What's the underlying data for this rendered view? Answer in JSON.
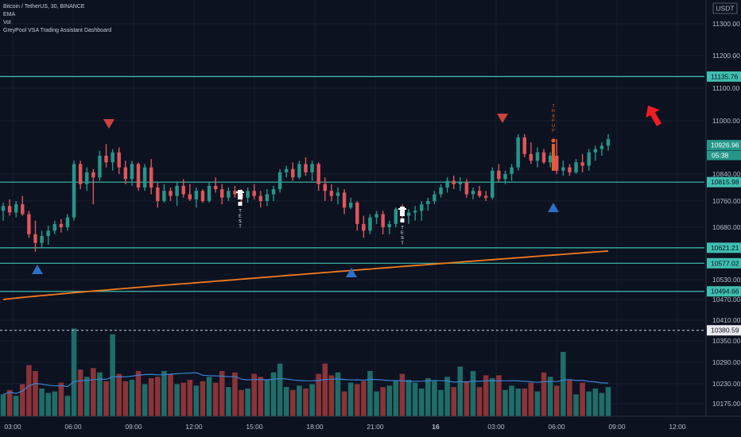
{
  "header": {
    "symbol_line": "Bitcoin / TetherUS, 30, BINANCE",
    "indicators": [
      "EMA",
      "Vol",
      "GreyPool VSA Trading Assistant Dashboard"
    ],
    "currency": "USDT"
  },
  "colors": {
    "background": "#0c1220",
    "up": "#26968a",
    "down": "#e0555c",
    "ema": "#f07b1f",
    "volume_ma": "#3a82d6",
    "level_line": "#3fbfb0",
    "signal_down": "#c9433f",
    "signal_up": "#2e6fc4",
    "trap_up": "#e8601c",
    "arrow": "#ee1c25"
  },
  "chart_data": {
    "type": "candlestick",
    "timeframe": "30",
    "y_range": [
      10140,
      11340
    ],
    "y_ticks": [
      11300,
      11200,
      11100,
      11000,
      10840,
      10760,
      10680,
      10530,
      10470,
      10410,
      10350,
      10290,
      10230,
      10175
    ],
    "x_ticks": [
      "03:00",
      "06:00",
      "09:00",
      "12:00",
      "15:00",
      "18:00",
      "21:00",
      "16",
      "03:00",
      "06:00",
      "09:00",
      "12:00"
    ],
    "x_tick_slots": [
      0,
      6,
      12,
      18,
      24,
      30,
      36,
      42,
      48,
      54,
      60,
      66
    ],
    "candles": [
      {
        "o": 10730,
        "h": 10755,
        "l": 10700,
        "c": 10745
      },
      {
        "o": 10745,
        "h": 10765,
        "l": 10715,
        "c": 10725
      },
      {
        "o": 10725,
        "h": 10760,
        "l": 10710,
        "c": 10750
      },
      {
        "o": 10750,
        "h": 10775,
        "l": 10715,
        "c": 10720
      },
      {
        "o": 10720,
        "h": 10730,
        "l": 10650,
        "c": 10660
      },
      {
        "o": 10660,
        "h": 10700,
        "l": 10610,
        "c": 10635
      },
      {
        "o": 10635,
        "h": 10670,
        "l": 10620,
        "c": 10655
      },
      {
        "o": 10655,
        "h": 10685,
        "l": 10630,
        "c": 10670
      },
      {
        "o": 10670,
        "h": 10700,
        "l": 10660,
        "c": 10690
      },
      {
        "o": 10690,
        "h": 10705,
        "l": 10665,
        "c": 10680
      },
      {
        "o": 10680,
        "h": 10720,
        "l": 10670,
        "c": 10710
      },
      {
        "o": 10710,
        "h": 10880,
        "l": 10700,
        "c": 10870
      },
      {
        "o": 10870,
        "h": 10880,
        "l": 10795,
        "c": 10810
      },
      {
        "o": 10810,
        "h": 10860,
        "l": 10790,
        "c": 10845
      },
      {
        "o": 10845,
        "h": 10855,
        "l": 10750,
        "c": 10830
      },
      {
        "o": 10830,
        "h": 10910,
        "l": 10820,
        "c": 10895
      },
      {
        "o": 10895,
        "h": 10930,
        "l": 10860,
        "c": 10875
      },
      {
        "o": 10875,
        "h": 10915,
        "l": 10850,
        "c": 10905
      },
      {
        "o": 10905,
        "h": 10920,
        "l": 10840,
        "c": 10860
      },
      {
        "o": 10860,
        "h": 10880,
        "l": 10810,
        "c": 10825
      },
      {
        "o": 10825,
        "h": 10880,
        "l": 10805,
        "c": 10870
      },
      {
        "o": 10870,
        "h": 10875,
        "l": 10790,
        "c": 10800
      },
      {
        "o": 10800,
        "h": 10870,
        "l": 10790,
        "c": 10860
      },
      {
        "o": 10860,
        "h": 10885,
        "l": 10780,
        "c": 10800
      },
      {
        "o": 10800,
        "h": 10815,
        "l": 10740,
        "c": 10760
      },
      {
        "o": 10760,
        "h": 10810,
        "l": 10755,
        "c": 10790
      },
      {
        "o": 10790,
        "h": 10800,
        "l": 10760,
        "c": 10775
      },
      {
        "o": 10775,
        "h": 10815,
        "l": 10745,
        "c": 10805
      },
      {
        "o": 10805,
        "h": 10825,
        "l": 10770,
        "c": 10780
      },
      {
        "o": 10780,
        "h": 10810,
        "l": 10760,
        "c": 10765
      },
      {
        "o": 10765,
        "h": 10800,
        "l": 10740,
        "c": 10790
      },
      {
        "o": 10790,
        "h": 10795,
        "l": 10755,
        "c": 10760
      },
      {
        "o": 10760,
        "h": 10815,
        "l": 10755,
        "c": 10805
      },
      {
        "o": 10805,
        "h": 10830,
        "l": 10785,
        "c": 10795
      },
      {
        "o": 10795,
        "h": 10810,
        "l": 10750,
        "c": 10770
      },
      {
        "o": 10770,
        "h": 10800,
        "l": 10760,
        "c": 10790
      },
      {
        "o": 10790,
        "h": 10805,
        "l": 10770,
        "c": 10780
      },
      {
        "o": 10780,
        "h": 10795,
        "l": 10755,
        "c": 10770
      },
      {
        "o": 10770,
        "h": 10800,
        "l": 10755,
        "c": 10790
      },
      {
        "o": 10790,
        "h": 10810,
        "l": 10765,
        "c": 10775
      },
      {
        "o": 10775,
        "h": 10790,
        "l": 10740,
        "c": 10760
      },
      {
        "o": 10760,
        "h": 10795,
        "l": 10745,
        "c": 10780
      },
      {
        "o": 10780,
        "h": 10805,
        "l": 10760,
        "c": 10795
      },
      {
        "o": 10795,
        "h": 10855,
        "l": 10785,
        "c": 10845
      },
      {
        "o": 10845,
        "h": 10865,
        "l": 10830,
        "c": 10855
      },
      {
        "o": 10855,
        "h": 10875,
        "l": 10820,
        "c": 10830
      },
      {
        "o": 10830,
        "h": 10880,
        "l": 10825,
        "c": 10870
      },
      {
        "o": 10870,
        "h": 10890,
        "l": 10835,
        "c": 10845
      },
      {
        "o": 10845,
        "h": 10880,
        "l": 10820,
        "c": 10870
      },
      {
        "o": 10870,
        "h": 10875,
        "l": 10790,
        "c": 10810
      },
      {
        "o": 10810,
        "h": 10830,
        "l": 10760,
        "c": 10790
      },
      {
        "o": 10790,
        "h": 10810,
        "l": 10760,
        "c": 10775
      },
      {
        "o": 10775,
        "h": 10800,
        "l": 10750,
        "c": 10785
      },
      {
        "o": 10785,
        "h": 10795,
        "l": 10720,
        "c": 10740
      },
      {
        "o": 10740,
        "h": 10770,
        "l": 10735,
        "c": 10755
      },
      {
        "o": 10755,
        "h": 10760,
        "l": 10670,
        "c": 10690
      },
      {
        "o": 10690,
        "h": 10715,
        "l": 10650,
        "c": 10670
      }
    ],
    "note_candles_extra": [
      {
        "o": 10670,
        "h": 10720,
        "l": 10660,
        "c": 10710
      },
      {
        "o": 10710,
        "h": 10730,
        "l": 10690,
        "c": 10720
      },
      {
        "o": 10720,
        "h": 10730,
        "l": 10660,
        "c": 10680
      },
      {
        "o": 10680,
        "h": 10700,
        "l": 10660,
        "c": 10690
      },
      {
        "o": 10690,
        "h": 10740,
        "l": 10680,
        "c": 10735
      },
      {
        "o": 10735,
        "h": 10750,
        "l": 10700,
        "c": 10715
      },
      {
        "o": 10715,
        "h": 10735,
        "l": 10690,
        "c": 10725
      },
      {
        "o": 10725,
        "h": 10745,
        "l": 10700,
        "c": 10730
      },
      {
        "o": 10730,
        "h": 10760,
        "l": 10700,
        "c": 10750
      },
      {
        "o": 10750,
        "h": 10770,
        "l": 10730,
        "c": 10760
      },
      {
        "o": 10760,
        "h": 10790,
        "l": 10750,
        "c": 10780
      },
      {
        "o": 10780,
        "h": 10810,
        "l": 10770,
        "c": 10800
      },
      {
        "o": 10800,
        "h": 10830,
        "l": 10785,
        "c": 10820
      },
      {
        "o": 10820,
        "h": 10835,
        "l": 10795,
        "c": 10810
      },
      {
        "o": 10810,
        "h": 10830,
        "l": 10790,
        "c": 10815
      },
      {
        "o": 10815,
        "h": 10825,
        "l": 10770,
        "c": 10780
      },
      {
        "o": 10780,
        "h": 10800,
        "l": 10765,
        "c": 10790
      },
      {
        "o": 10790,
        "h": 10805,
        "l": 10770,
        "c": 10775
      },
      {
        "o": 10775,
        "h": 10790,
        "l": 10760,
        "c": 10770
      },
      {
        "o": 10770,
        "h": 10860,
        "l": 10765,
        "c": 10850
      },
      {
        "o": 10850,
        "h": 10870,
        "l": 10815,
        "c": 10825
      },
      {
        "o": 10825,
        "h": 10850,
        "l": 10810,
        "c": 10840
      },
      {
        "o": 10840,
        "h": 10870,
        "l": 10820,
        "c": 10860
      },
      {
        "o": 10860,
        "h": 10960,
        "l": 10850,
        "c": 10950
      },
      {
        "o": 10950,
        "h": 10960,
        "l": 10890,
        "c": 10900
      },
      {
        "o": 10900,
        "h": 10935,
        "l": 10870,
        "c": 10880
      },
      {
        "o": 10880,
        "h": 10920,
        "l": 10860,
        "c": 10905
      },
      {
        "o": 10905,
        "h": 10915,
        "l": 10870,
        "c": 10875
      },
      {
        "o": 10875,
        "h": 10905,
        "l": 10860,
        "c": 10895
      },
      {
        "o": 10895,
        "h": 10945,
        "l": 10840,
        "c": 10850
      },
      {
        "o": 10850,
        "h": 10880,
        "l": 10835,
        "c": 10860
      },
      {
        "o": 10860,
        "h": 10870,
        "l": 10835,
        "c": 10845
      },
      {
        "o": 10845,
        "h": 10885,
        "l": 10840,
        "c": 10875
      },
      {
        "o": 10875,
        "h": 10900,
        "l": 10845,
        "c": 10865
      },
      {
        "o": 10865,
        "h": 10915,
        "l": 10850,
        "c": 10905
      },
      {
        "o": 10905,
        "h": 10925,
        "l": 10880,
        "c": 10915
      },
      {
        "o": 10915,
        "h": 10935,
        "l": 10895,
        "c": 10925
      },
      {
        "o": 10925,
        "h": 10960,
        "l": 10910,
        "c": 10945
      }
    ],
    "volume": [
      30,
      36,
      28,
      44,
      70,
      62,
      38,
      32,
      34,
      46,
      28,
      120,
      64,
      54,
      66,
      60,
      48,
      112,
      58,
      48,
      50,
      62,
      44,
      52,
      54,
      62,
      58,
      44,
      46,
      50,
      42,
      48,
      54,
      46,
      62,
      40,
      60,
      36,
      38,
      58,
      54,
      50,
      60,
      72,
      40,
      36,
      42,
      38,
      44,
      58,
      72,
      56,
      60,
      34,
      46,
      44,
      48,
      62,
      34,
      40,
      42,
      48,
      58,
      50,
      46,
      38,
      52,
      48,
      36,
      54,
      40,
      68,
      48,
      62,
      40,
      56,
      52,
      56,
      36,
      42,
      38,
      38,
      46,
      34,
      60,
      54,
      42,
      88,
      50,
      30,
      46,
      34,
      38,
      32,
      40,
      54,
      42,
      40,
      50,
      66,
      66
    ],
    "volume_y_range": [
      0,
      140
    ],
    "ema_start": 10470,
    "ema_end": 10612,
    "levels": [
      11135.76,
      10815.98,
      10621.21,
      10577.02,
      10494.66
    ],
    "reference_price": 10380.59,
    "last_price": "10926.96",
    "countdown": "05:38",
    "price_tags": [
      "11135.76",
      "10926.96",
      "10815.98",
      "10621.21",
      "10577.02",
      "10494.66",
      "10380.59"
    ],
    "test_labels": [
      "TEST",
      "TEST"
    ],
    "trap_label": "TRAP UP"
  }
}
